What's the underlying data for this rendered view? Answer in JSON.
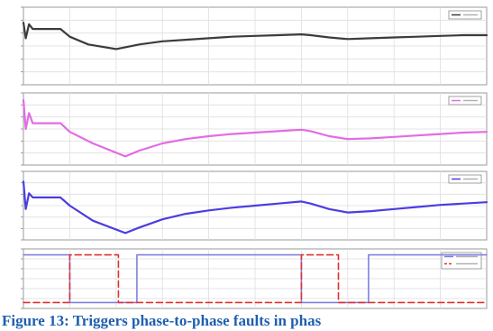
{
  "caption": "Figure 13: Triggers phase-to-phase faults in phas",
  "chart_data": [
    {
      "type": "line",
      "panel": "scope-1",
      "title": "",
      "xlabel": "",
      "ylabel": "",
      "xlim": [
        0,
        1
      ],
      "grid": true,
      "legend": "top-right",
      "series": [
        {
          "color": "#3c3c3c",
          "x": [
            0,
            0.005,
            0.012,
            0.02,
            0.04,
            0.08,
            0.1,
            0.14,
            0.2,
            0.25,
            0.3,
            0.35,
            0.4,
            0.45,
            0.5,
            0.55,
            0.6,
            0.62,
            0.66,
            0.7,
            0.75,
            0.8,
            0.85,
            0.9,
            0.95,
            1.0
          ],
          "y": [
            0.8,
            0.6,
            0.78,
            0.72,
            0.72,
            0.72,
            0.62,
            0.52,
            0.46,
            0.52,
            0.56,
            0.58,
            0.6,
            0.62,
            0.63,
            0.64,
            0.65,
            0.64,
            0.61,
            0.59,
            0.6,
            0.61,
            0.62,
            0.63,
            0.64,
            0.64
          ]
        }
      ]
    },
    {
      "type": "line",
      "panel": "scope-2",
      "title": "",
      "xlabel": "",
      "ylabel": "",
      "xlim": [
        0,
        1
      ],
      "grid": true,
      "legend": "top-right",
      "series": [
        {
          "color": "#e36be3",
          "x": [
            0,
            0.005,
            0.012,
            0.02,
            0.04,
            0.08,
            0.1,
            0.15,
            0.22,
            0.25,
            0.3,
            0.35,
            0.4,
            0.45,
            0.5,
            0.55,
            0.6,
            0.62,
            0.66,
            0.7,
            0.75,
            0.8,
            0.85,
            0.9,
            0.95,
            1.0
          ],
          "y": [
            0.9,
            0.5,
            0.72,
            0.58,
            0.58,
            0.58,
            0.46,
            0.3,
            0.12,
            0.2,
            0.3,
            0.36,
            0.4,
            0.43,
            0.45,
            0.47,
            0.49,
            0.47,
            0.4,
            0.36,
            0.37,
            0.39,
            0.41,
            0.43,
            0.45,
            0.46
          ]
        }
      ]
    },
    {
      "type": "line",
      "panel": "scope-3",
      "title": "",
      "xlabel": "",
      "ylabel": "",
      "xlim": [
        0,
        1
      ],
      "grid": true,
      "legend": "top-right",
      "series": [
        {
          "color": "#4b3de0",
          "x": [
            0,
            0.005,
            0.012,
            0.02,
            0.04,
            0.08,
            0.1,
            0.15,
            0.22,
            0.25,
            0.3,
            0.35,
            0.4,
            0.45,
            0.5,
            0.55,
            0.6,
            0.62,
            0.66,
            0.7,
            0.75,
            0.8,
            0.85,
            0.9,
            0.95,
            1.0
          ],
          "y": [
            0.85,
            0.45,
            0.68,
            0.62,
            0.62,
            0.62,
            0.5,
            0.28,
            0.1,
            0.18,
            0.3,
            0.38,
            0.43,
            0.47,
            0.5,
            0.53,
            0.56,
            0.53,
            0.45,
            0.4,
            0.42,
            0.45,
            0.48,
            0.51,
            0.53,
            0.55
          ]
        }
      ]
    },
    {
      "type": "line",
      "panel": "scope-4",
      "title": "",
      "xlabel": "",
      "ylabel": "",
      "xlim": [
        0,
        1
      ],
      "ylim": [
        0,
        1
      ],
      "grid": true,
      "legend": "top-right",
      "series": [
        {
          "color": "#8080e0",
          "style": "step",
          "x": [
            0,
            0.1,
            0.1,
            0.245,
            0.245,
            0.6,
            0.6,
            0.745,
            0.745,
            1.0
          ],
          "y": [
            0.9,
            0.9,
            0.1,
            0.1,
            0.9,
            0.9,
            0.1,
            0.1,
            0.9,
            0.9
          ]
        },
        {
          "color": "#e03030",
          "style": "dashed-step",
          "x": [
            0,
            0.1,
            0.1,
            0.205,
            0.205,
            0.6,
            0.6,
            0.68,
            0.68,
            1.0
          ],
          "y": [
            0.1,
            0.1,
            0.9,
            0.9,
            0.1,
            0.1,
            0.9,
            0.9,
            0.1,
            0.1
          ]
        }
      ]
    }
  ]
}
